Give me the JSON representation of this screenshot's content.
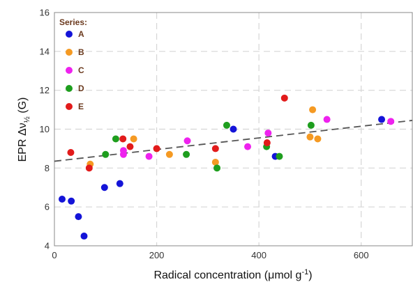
{
  "chart_data": {
    "type": "scatter",
    "xlabel_main": "Radical concentration (μmol g",
    "xlabel_sup": "-1",
    "xlabel_end": ")",
    "ylabel_main": "EPR Δν",
    "ylabel_sub": "½",
    "ylabel_end": " (G)",
    "xlim": [
      0,
      700
    ],
    "ylim": [
      4,
      16
    ],
    "xticks": [
      0,
      200,
      400,
      600
    ],
    "yticks": [
      4,
      6,
      8,
      10,
      12,
      14,
      16
    ],
    "grid": true,
    "legend": {
      "title": "Series:",
      "placement": "top-left"
    },
    "trendline": {
      "x": [
        0,
        700
      ],
      "y": [
        8.35,
        10.45
      ]
    },
    "series": [
      {
        "name": "A",
        "color": "#1414d8",
        "points": [
          {
            "x": 15,
            "y": 6.4
          },
          {
            "x": 33,
            "y": 6.3
          },
          {
            "x": 47,
            "y": 5.5
          },
          {
            "x": 58,
            "y": 4.5
          },
          {
            "x": 98,
            "y": 7.0
          },
          {
            "x": 128,
            "y": 7.2
          },
          {
            "x": 350,
            "y": 10.0
          },
          {
            "x": 432,
            "y": 8.6
          },
          {
            "x": 640,
            "y": 10.5
          }
        ]
      },
      {
        "name": "B",
        "color": "#f59a23",
        "points": [
          {
            "x": 70,
            "y": 8.2
          },
          {
            "x": 155,
            "y": 9.5
          },
          {
            "x": 225,
            "y": 8.7
          },
          {
            "x": 315,
            "y": 8.3
          },
          {
            "x": 500,
            "y": 9.6
          },
          {
            "x": 505,
            "y": 11.0
          },
          {
            "x": 515,
            "y": 9.5
          }
        ]
      },
      {
        "name": "C",
        "color": "#ee22ee",
        "points": [
          {
            "x": 135,
            "y": 8.7
          },
          {
            "x": 135,
            "y": 8.9
          },
          {
            "x": 185,
            "y": 8.6
          },
          {
            "x": 260,
            "y": 9.4
          },
          {
            "x": 378,
            "y": 9.1
          },
          {
            "x": 418,
            "y": 9.8
          },
          {
            "x": 533,
            "y": 10.5
          },
          {
            "x": 658,
            "y": 10.4
          }
        ]
      },
      {
        "name": "D",
        "color": "#1e9e1e",
        "points": [
          {
            "x": 100,
            "y": 8.7
          },
          {
            "x": 120,
            "y": 9.5
          },
          {
            "x": 258,
            "y": 8.7
          },
          {
            "x": 318,
            "y": 8.0
          },
          {
            "x": 337,
            "y": 10.2
          },
          {
            "x": 415,
            "y": 9.1
          },
          {
            "x": 440,
            "y": 8.6
          },
          {
            "x": 502,
            "y": 10.2
          }
        ]
      },
      {
        "name": "E",
        "color": "#e21b1b",
        "points": [
          {
            "x": 32,
            "y": 8.8
          },
          {
            "x": 68,
            "y": 8.0
          },
          {
            "x": 134,
            "y": 9.5
          },
          {
            "x": 148,
            "y": 9.1
          },
          {
            "x": 200,
            "y": 9.0
          },
          {
            "x": 315,
            "y": 9.0
          },
          {
            "x": 416,
            "y": 9.3
          },
          {
            "x": 450,
            "y": 11.6
          }
        ]
      }
    ]
  }
}
